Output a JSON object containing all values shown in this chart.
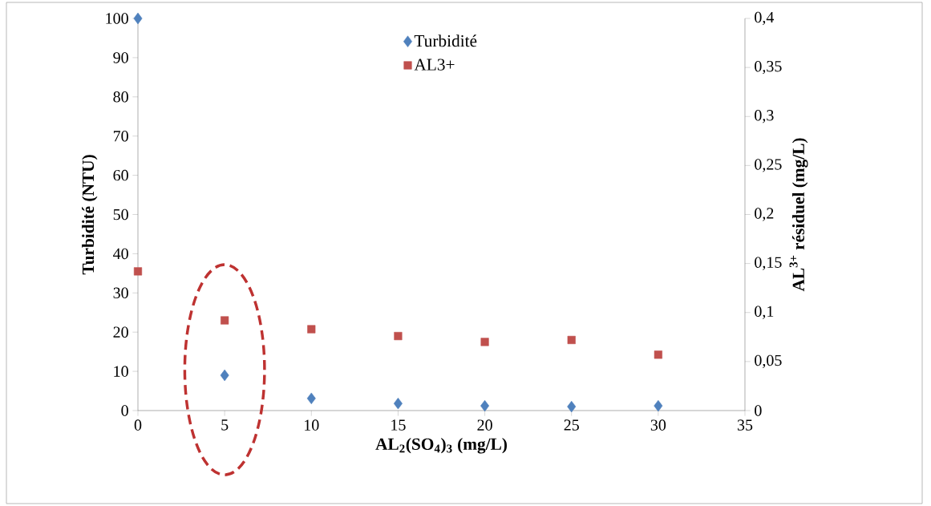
{
  "chart_data": {
    "type": "scatter",
    "xlabel": "AL$_{2}$(SO$_{4}$)$_{3}$  (mg/L)",
    "ylabel": "Turbidité (NTU)",
    "y2label": "AL$^{3+}$  résiduel (mg/L)",
    "x": [
      0,
      5,
      10,
      15,
      20,
      25,
      30
    ],
    "series": [
      {
        "name": "Turbidité",
        "color": "#4f81bd",
        "marker": "diamond",
        "values": [
          100,
          9.0,
          3.1,
          1.8,
          1.2,
          1.0,
          1.2
        ]
      },
      {
        "name": "AL3+",
        "color": "#c0504d",
        "marker": "square",
        "axis": "y2",
        "values": [
          0.142,
          0.092,
          0.083,
          0.076,
          0.07,
          0.072,
          0.057
        ]
      }
    ],
    "xlim": [
      0,
      35
    ],
    "xticks": [
      0,
      5,
      10,
      15,
      20,
      25,
      30,
      35
    ],
    "ylim": [
      0,
      100
    ],
    "yticks": [
      0,
      10,
      20,
      30,
      40,
      50,
      60,
      70,
      80,
      90,
      100
    ],
    "y2lim": [
      0,
      0.4
    ],
    "y2ticks": [
      0,
      {
        "value": 0.05,
        "label": "0,05"
      },
      {
        "value": 0.1,
        "label": "0,1"
      },
      {
        "value": 0.15,
        "label": "0,15"
      },
      {
        "value": 0.2,
        "label": "0,2"
      },
      {
        "value": 0.25,
        "label": "0,25"
      },
      {
        "value": 0.3,
        "label": "0,3"
      },
      {
        "value": 0.35,
        "label": "0,35"
      },
      {
        "value": 0.4,
        "label": "0,4"
      }
    ],
    "grid": false,
    "legend": "top"
  }
}
